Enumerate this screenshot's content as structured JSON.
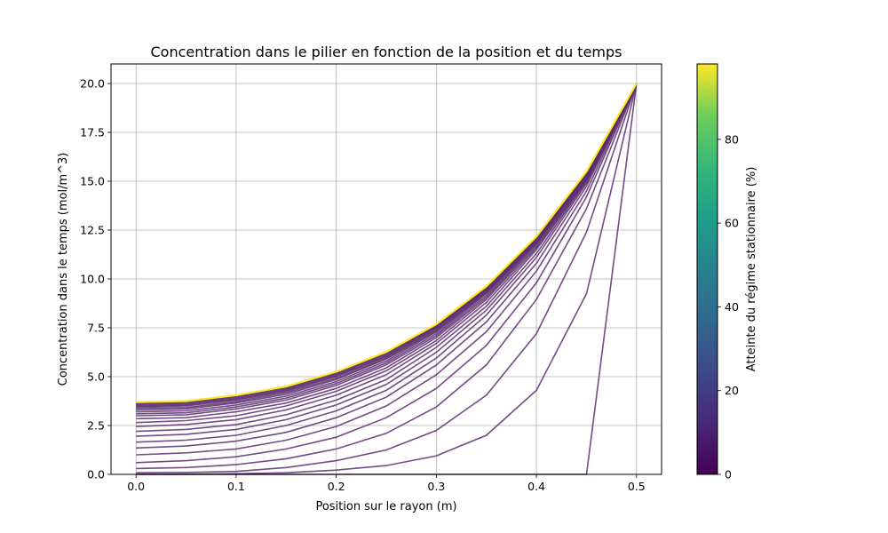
{
  "chart_data": {
    "type": "line",
    "title": "Concentration dans le pilier en fonction de la position et du temps",
    "xlabel": "Position sur le rayon (m)",
    "ylabel": "Concentration dans le temps (mol/m^3)",
    "xlim": [
      -0.025,
      0.525
    ],
    "ylim": [
      0,
      21
    ],
    "x_ticks": [
      "0.0",
      "0.1",
      "0.2",
      "0.3",
      "0.4",
      "0.5"
    ],
    "y_ticks": [
      "0.0",
      "2.5",
      "5.0",
      "7.5",
      "10.0",
      "12.5",
      "15.0",
      "17.5",
      "20.0"
    ],
    "grid": true,
    "x": [
      0.0,
      0.05,
      0.1,
      0.15,
      0.2,
      0.25,
      0.3,
      0.35,
      0.4,
      0.45,
      0.5
    ],
    "series": [
      {
        "values": [
          0.0,
          0.0,
          0.0,
          0.0,
          0.0,
          0.0,
          0.0,
          0.0,
          0.0,
          0.0,
          20.0
        ]
      },
      {
        "values": [
          0.0,
          0.01,
          0.03,
          0.08,
          0.22,
          0.45,
          0.95,
          2.0,
          4.3,
          9.25,
          20.0
        ]
      },
      {
        "values": [
          0.08,
          0.1,
          0.15,
          0.35,
          0.7,
          1.25,
          2.25,
          4.05,
          7.2,
          12.4,
          20.0
        ]
      },
      {
        "values": [
          0.3,
          0.35,
          0.5,
          0.8,
          1.3,
          2.1,
          3.45,
          5.6,
          8.95,
          13.6,
          20.0
        ]
      },
      {
        "values": [
          0.6,
          0.7,
          0.9,
          1.3,
          1.9,
          2.9,
          4.4,
          6.6,
          9.8,
          14.2,
          20.0
        ]
      },
      {
        "values": [
          1.0,
          1.1,
          1.3,
          1.75,
          2.45,
          3.5,
          5.1,
          7.3,
          10.4,
          14.5,
          20.0
        ]
      },
      {
        "values": [
          1.35,
          1.45,
          1.7,
          2.15,
          2.9,
          3.95,
          5.6,
          7.8,
          10.8,
          14.75,
          20.0
        ]
      },
      {
        "values": [
          1.65,
          1.75,
          2.0,
          2.5,
          3.25,
          4.3,
          5.95,
          8.15,
          11.1,
          14.9,
          20.0
        ]
      },
      {
        "values": [
          1.95,
          2.05,
          2.3,
          2.8,
          3.55,
          4.6,
          6.25,
          8.4,
          11.3,
          15.0,
          20.0
        ]
      },
      {
        "values": [
          2.2,
          2.3,
          2.55,
          3.05,
          3.8,
          4.85,
          6.5,
          8.6,
          11.5,
          15.05,
          20.0
        ]
      },
      {
        "values": [
          2.45,
          2.55,
          2.8,
          3.3,
          4.05,
          5.1,
          6.7,
          8.8,
          11.6,
          15.1,
          20.0
        ]
      },
      {
        "values": [
          2.65,
          2.75,
          3.0,
          3.5,
          4.25,
          5.3,
          6.85,
          8.95,
          11.7,
          15.15,
          20.0
        ]
      },
      {
        "values": [
          2.85,
          2.9,
          3.2,
          3.65,
          4.4,
          5.45,
          7.0,
          9.05,
          11.8,
          15.2,
          20.0
        ]
      },
      {
        "values": [
          3.0,
          3.05,
          3.35,
          3.8,
          4.55,
          5.6,
          7.1,
          9.15,
          11.85,
          15.25,
          20.0
        ]
      },
      {
        "values": [
          3.1,
          3.15,
          3.45,
          3.9,
          4.65,
          5.7,
          7.2,
          9.25,
          11.9,
          15.3,
          20.0
        ]
      },
      {
        "values": [
          3.2,
          3.25,
          3.55,
          4.0,
          4.75,
          5.8,
          7.3,
          9.3,
          11.95,
          15.3,
          20.0
        ]
      },
      {
        "values": [
          3.3,
          3.35,
          3.65,
          4.1,
          4.85,
          5.9,
          7.35,
          9.35,
          12.0,
          15.35,
          20.0
        ]
      },
      {
        "values": [
          3.38,
          3.42,
          3.72,
          4.18,
          4.92,
          5.95,
          7.42,
          9.4,
          12.03,
          15.37,
          20.0
        ]
      },
      {
        "values": [
          3.45,
          3.5,
          3.8,
          4.25,
          5.0,
          6.02,
          7.48,
          9.44,
          12.06,
          15.4,
          20.0
        ]
      },
      {
        "values": [
          3.5,
          3.55,
          3.85,
          4.3,
          5.05,
          6.07,
          7.52,
          9.48,
          12.08,
          15.42,
          20.0
        ]
      },
      {
        "values": [
          3.55,
          3.6,
          3.9,
          4.35,
          5.1,
          6.12,
          7.56,
          9.52,
          12.1,
          15.44,
          20.0
        ]
      },
      {
        "values": [
          3.6,
          3.65,
          3.95,
          4.4,
          5.15,
          6.17,
          7.6,
          9.55,
          12.12,
          15.46,
          20.0
        ]
      },
      {
        "values": [
          3.65,
          3.7,
          4.0,
          4.45,
          5.2,
          6.22,
          7.64,
          9.58,
          12.14,
          15.48,
          20.0
        ]
      },
      {
        "values": [
          3.7,
          3.75,
          4.05,
          4.5,
          5.25,
          6.27,
          7.68,
          9.62,
          12.17,
          15.5,
          20.0
        ]
      }
    ],
    "colorbar": {
      "label": "Atteinte du régime stationnaire (%)",
      "ticks": [
        "0",
        "20",
        "40",
        "60",
        "80"
      ],
      "range": [
        0,
        98
      ],
      "colormap": "viridis"
    },
    "line_color": "#5b2d6e",
    "last_line_color": "#fde725"
  }
}
